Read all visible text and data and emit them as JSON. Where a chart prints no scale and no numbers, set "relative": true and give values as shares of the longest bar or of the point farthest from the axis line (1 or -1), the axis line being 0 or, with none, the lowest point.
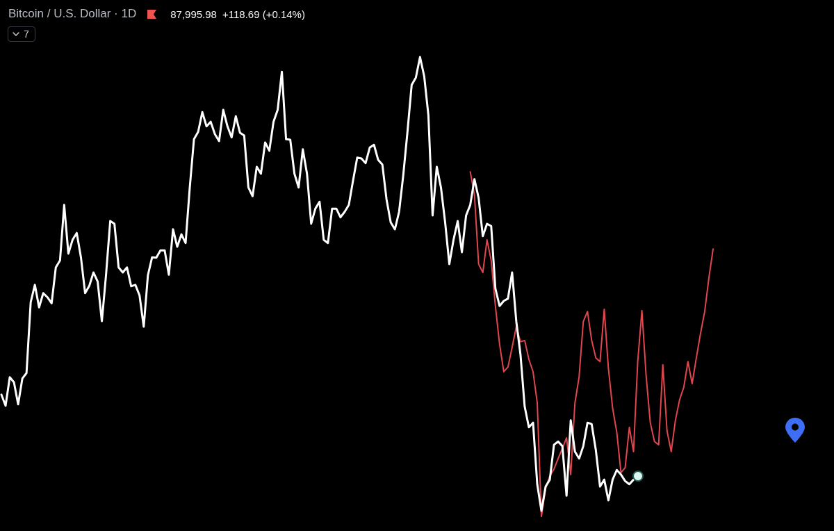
{
  "chart_data": {
    "type": "line",
    "title": "Bitcoin / U.S. Dollar · 1D",
    "annotations": [
      "87,995.98",
      "+118.69 (+0.14%)",
      "7"
    ],
    "relative": true,
    "categories": [
      null,
      null,
      null,
      null,
      null,
      null,
      null,
      null,
      null,
      null,
      null,
      null,
      null,
      null,
      null,
      null,
      null,
      null,
      null,
      null,
      null,
      null,
      null,
      null,
      null,
      null,
      null,
      null,
      null,
      null,
      null,
      null,
      null,
      null,
      null,
      null,
      null,
      null,
      null,
      null,
      null,
      null,
      null,
      null,
      null,
      null,
      null,
      null,
      null,
      null,
      null,
      null,
      null,
      null,
      null,
      null,
      null,
      null,
      null,
      null,
      null,
      null,
      null,
      null,
      null,
      null,
      null,
      null,
      null,
      null,
      null,
      null,
      null,
      null,
      null,
      null,
      null,
      null,
      null,
      null,
      null,
      null,
      null,
      null,
      null,
      null,
      null,
      null,
      null,
      null,
      null,
      null,
      null,
      null,
      null,
      null,
      null,
      null,
      null,
      null,
      null,
      null,
      null,
      null,
      null,
      null,
      null,
      null,
      null,
      null,
      null,
      null,
      null,
      null,
      null,
      null,
      null,
      null,
      null,
      null,
      null,
      null,
      null,
      null,
      null,
      null,
      null,
      null,
      null,
      null,
      null,
      null,
      null,
      null,
      null,
      null,
      null,
      null,
      null,
      null,
      null,
      null,
      null,
      null,
      null,
      null,
      null,
      null,
      null,
      null,
      null,
      null,
      null,
      null,
      null,
      null,
      null,
      null,
      null,
      null,
      null,
      null,
      null,
      null,
      null,
      null,
      null,
      null,
      null,
      null,
      null
    ],
    "series": [
      {
        "color": "#ffffff",
        "values": [
          0.265,
          0.241,
          0.303,
          0.292,
          0.244,
          0.3,
          0.312,
          0.466,
          0.504,
          0.455,
          0.486,
          0.477,
          0.464,
          0.542,
          0.557,
          0.678,
          0.572,
          0.602,
          0.617,
          0.564,
          0.486,
          0.502,
          0.531,
          0.511,
          0.425,
          0.526,
          0.643,
          0.637,
          0.542,
          0.531,
          0.542,
          0.501,
          0.504,
          0.481,
          0.413,
          0.525,
          0.564,
          0.563,
          0.579,
          0.579,
          0.526,
          0.625,
          0.587,
          0.614,
          0.595,
          0.716,
          0.821,
          0.837,
          0.88,
          0.849,
          0.859,
          0.832,
          0.817,
          0.885,
          0.849,
          0.825,
          0.871,
          0.835,
          0.829,
          0.716,
          0.697,
          0.761,
          0.746,
          0.814,
          0.796,
          0.859,
          0.885,
          0.968,
          0.821,
          0.82,
          0.746,
          0.716,
          0.799,
          0.746,
          0.637,
          0.67,
          0.685,
          0.602,
          0.595,
          0.67,
          0.67,
          0.651,
          0.663,
          0.678,
          0.731,
          0.781,
          0.779,
          0.769,
          0.803,
          0.809,
          0.776,
          0.766,
          0.69,
          0.64,
          0.625,
          0.663,
          0.743,
          0.837,
          0.939,
          0.955,
          1,
          0.958,
          0.873,
          0.655,
          0.761,
          0.716,
          0.64,
          0.549,
          0.602,
          0.643,
          0.575,
          0.655,
          0.678,
          0.734,
          0.693,
          0.61,
          0.637,
          0.632,
          0.496,
          0.458,
          0.469,
          0.474,
          0.531,
          0.424,
          0.352,
          0.239,
          0.194,
          0.204,
          0.07,
          0.012,
          0.065,
          0.08,
          0.156,
          0.163,
          0.153,
          0.045,
          0.209,
          0.141,
          0.126,
          0.153,
          0.204,
          0.201,
          0.144,
          0.065,
          0.08,
          0.035,
          0.08,
          0.101,
          0.091,
          0.077,
          0.07,
          0.08,
          0.088,
          null,
          null,
          null,
          null,
          null,
          null,
          null,
          null,
          null,
          null,
          null,
          null,
          null,
          null,
          null,
          null,
          null,
          null
        ]
      },
      {
        "color": "#e0464e",
        "values": [
          null,
          null,
          null,
          null,
          null,
          null,
          null,
          null,
          null,
          null,
          null,
          null,
          null,
          null,
          null,
          null,
          null,
          null,
          null,
          null,
          null,
          null,
          null,
          null,
          null,
          null,
          null,
          null,
          null,
          null,
          null,
          null,
          null,
          null,
          null,
          null,
          null,
          null,
          null,
          null,
          null,
          null,
          null,
          null,
          null,
          null,
          null,
          null,
          null,
          null,
          null,
          null,
          null,
          null,
          null,
          null,
          null,
          null,
          null,
          null,
          null,
          null,
          null,
          null,
          null,
          null,
          null,
          null,
          null,
          null,
          null,
          null,
          null,
          null,
          null,
          null,
          null,
          null,
          null,
          null,
          null,
          null,
          null,
          null,
          null,
          null,
          null,
          null,
          null,
          null,
          null,
          null,
          null,
          null,
          null,
          null,
          null,
          null,
          null,
          null,
          null,
          null,
          null,
          null,
          null,
          null,
          null,
          null,
          null,
          null,
          null,
          null,
          0.75,
          0.7,
          0.549,
          0.531,
          0.602,
          0.557,
          0.458,
          0.375,
          0.315,
          0.325,
          0.368,
          0.413,
          0.38,
          0.383,
          0.342,
          0.315,
          0.247,
          0,
          0.061,
          0.088,
          0.103,
          0.126,
          0.148,
          0.171,
          0.091,
          0.247,
          0.304,
          0.424,
          0.446,
          0.383,
          0.345,
          0.337,
          0.451,
          0.322,
          0.236,
          0.183,
          0.095,
          0.106,
          0.194,
          0.141,
          0.337,
          0.448,
          0.307,
          0.204,
          0.163,
          0.156,
          0.33,
          0.186,
          0.141,
          0.209,
          0.254,
          0.281,
          0.337,
          0.289,
          0.345,
          0.398,
          0.446,
          0.519,
          0.582
        ]
      }
    ]
  }
}
